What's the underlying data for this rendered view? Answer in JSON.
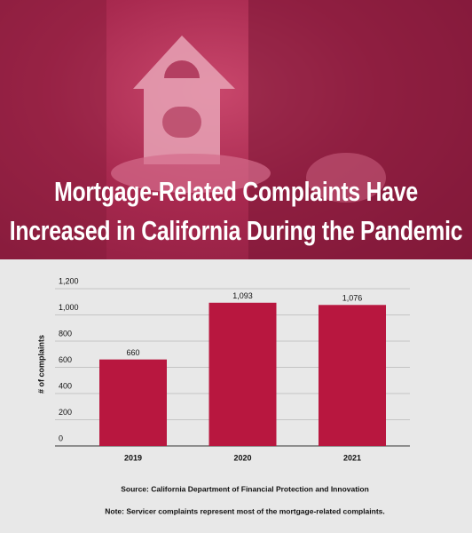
{
  "chart_data": {
    "type": "bar",
    "title": "Mortgage-Related Complaints Have Increased in California During the Pandemic",
    "y_label": "# of complaints",
    "categories": [
      "2019",
      "2020",
      "2021"
    ],
    "values": [
      660,
      1093,
      1076
    ],
    "value_labels": [
      "660",
      "1,093",
      "1,076"
    ],
    "color": "#b8173f",
    "ylim": [
      0,
      1200
    ],
    "yticks": [
      0,
      200,
      400,
      600,
      800,
      {
        "value": 1000,
        "label": "1,000"
      },
      {
        "value": 1200,
        "label": "1,200"
      }
    ],
    "grid": true,
    "source": "Source: California Department of Financial Protection and Innovation",
    "note": "Note: Servicer complaints represent most of the mortgage-related complaints."
  }
}
